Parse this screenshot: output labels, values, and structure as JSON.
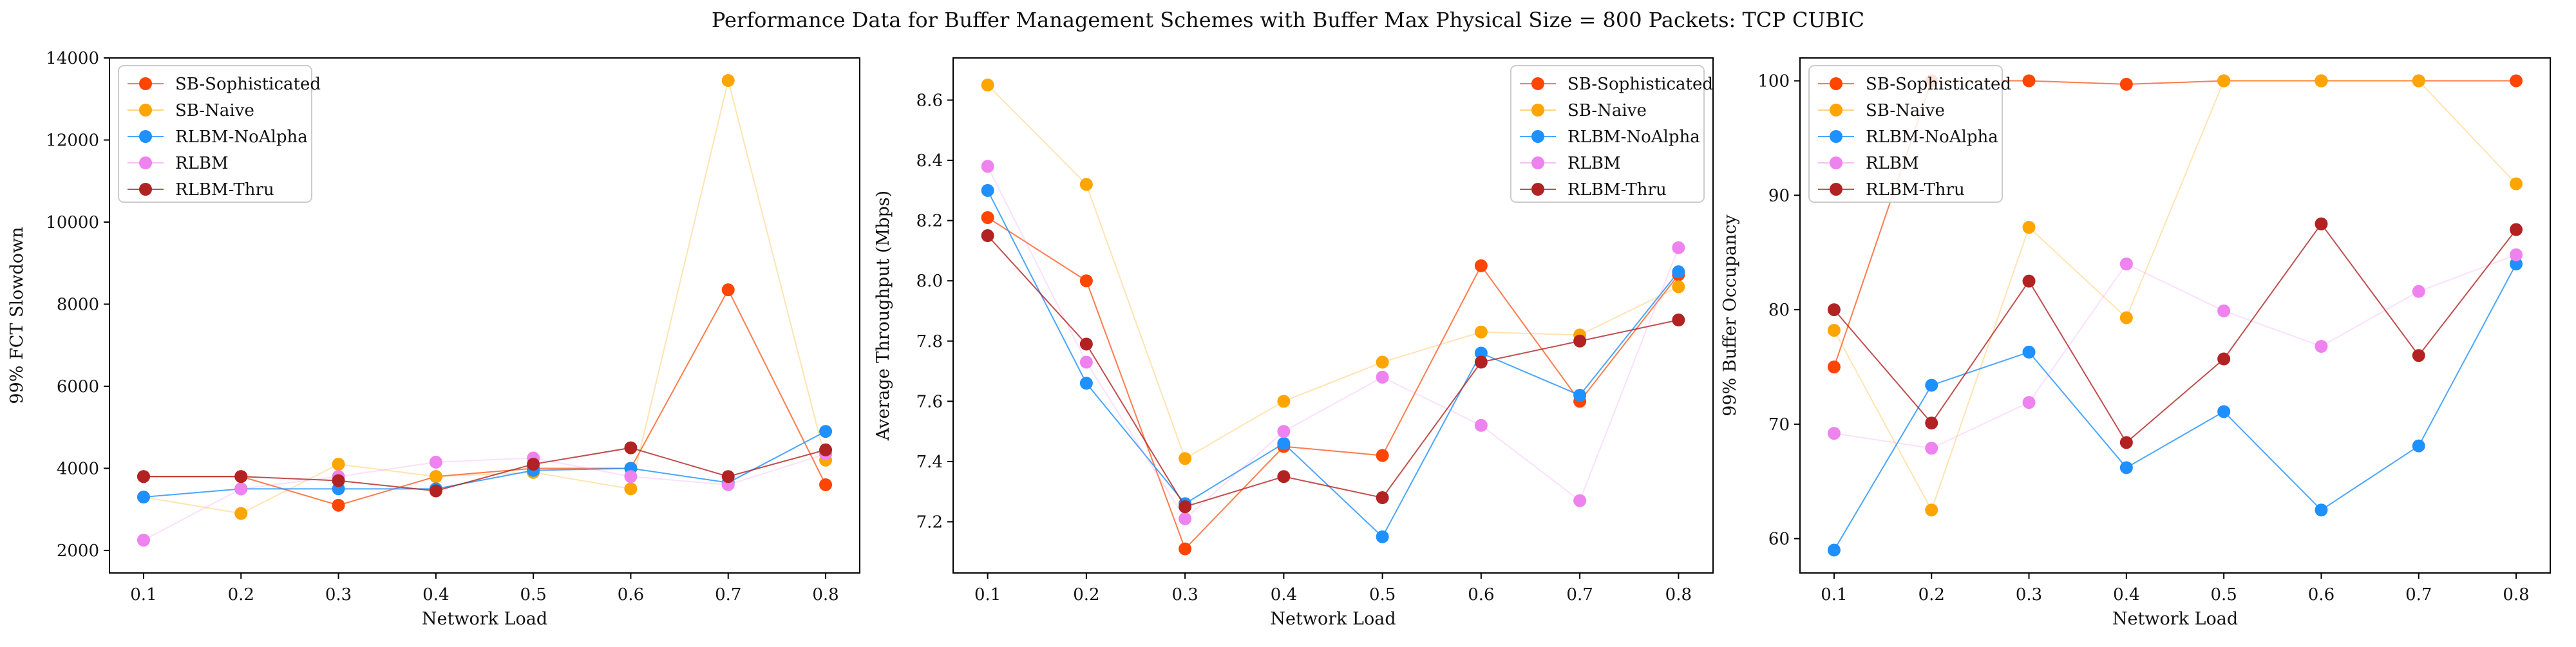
{
  "figure": {
    "title": "Performance Data for Buffer Management Schemes with Buffer Max Physical Size = 800 Packets: TCP CUBIC"
  },
  "series_styles": [
    {
      "name": "SB-Sophisticated",
      "color": "#ff4500",
      "line_opacity": 0.7
    },
    {
      "name": "SB-Naive",
      "color": "#ffa500",
      "line_opacity": 0.3
    },
    {
      "name": "RLBM-NoAlpha",
      "color": "#1e90ff",
      "line_opacity": 0.8
    },
    {
      "name": "RLBM",
      "color": "#ee82ee",
      "line_opacity": 0.25
    },
    {
      "name": "RLBM-Thru",
      "color": "#b22222",
      "line_opacity": 0.8
    }
  ],
  "chart_data": [
    {
      "type": "line",
      "title": "",
      "xlabel": "Network Load",
      "ylabel": "99% FCT Slowdown",
      "x": [
        0.1,
        0.2,
        0.3,
        0.4,
        0.5,
        0.6,
        0.7,
        0.8
      ],
      "xticks": [
        "0.1",
        "0.2",
        "0.3",
        "0.4",
        "0.5",
        "0.6",
        "0.7",
        "0.8"
      ],
      "xlim": [
        0.065,
        0.835
      ],
      "ylim": [
        1450,
        14000
      ],
      "yticks": [
        2000,
        4000,
        6000,
        8000,
        10000,
        12000,
        14000
      ],
      "ytick_labels": [
        "2000",
        "4000",
        "6000",
        "8000",
        "10000",
        "12000",
        "14000"
      ],
      "legend": "top-left",
      "grid": false,
      "series": [
        {
          "name": "SB-Sophisticated",
          "values": [
            3800,
            3800,
            3100,
            3800,
            4000,
            4000,
            8350,
            3600
          ]
        },
        {
          "name": "SB-Naive",
          "values": [
            3300,
            2900,
            4100,
            3800,
            3900,
            3500,
            13450,
            4200
          ]
        },
        {
          "name": "RLBM-NoAlpha",
          "values": [
            3300,
            3500,
            3500,
            3500,
            3950,
            4000,
            3650,
            4900
          ]
        },
        {
          "name": "RLBM",
          "values": [
            2250,
            3500,
            3800,
            4150,
            4250,
            3800,
            3600,
            4350
          ]
        },
        {
          "name": "RLBM-Thru",
          "values": [
            3800,
            3800,
            3700,
            3450,
            4100,
            4500,
            3800,
            4450
          ]
        }
      ]
    },
    {
      "type": "line",
      "title": "",
      "xlabel": "Network Load",
      "ylabel": "Average Throughput (Mbps)",
      "x": [
        0.1,
        0.2,
        0.3,
        0.4,
        0.5,
        0.6,
        0.7,
        0.8
      ],
      "xticks": [
        "0.1",
        "0.2",
        "0.3",
        "0.4",
        "0.5",
        "0.6",
        "0.7",
        "0.8"
      ],
      "xlim": [
        0.065,
        0.835
      ],
      "ylim": [
        7.03,
        8.74
      ],
      "yticks": [
        7.2,
        7.4,
        7.6,
        7.8,
        8.0,
        8.2,
        8.4,
        8.6
      ],
      "ytick_labels": [
        "7.2",
        "7.4",
        "7.6",
        "7.8",
        "8.0",
        "8.2",
        "8.4",
        "8.6"
      ],
      "legend": "top-right",
      "grid": false,
      "series": [
        {
          "name": "SB-Sophisticated",
          "values": [
            8.21,
            8.0,
            7.11,
            7.45,
            7.42,
            8.05,
            7.6,
            8.02
          ]
        },
        {
          "name": "SB-Naive",
          "values": [
            8.65,
            8.32,
            7.41,
            7.6,
            7.73,
            7.83,
            7.82,
            7.98
          ]
        },
        {
          "name": "RLBM-NoAlpha",
          "values": [
            8.3,
            7.66,
            7.26,
            7.46,
            7.15,
            7.76,
            7.62,
            8.03
          ]
        },
        {
          "name": "RLBM",
          "values": [
            8.38,
            7.73,
            7.21,
            7.5,
            7.68,
            7.52,
            7.27,
            8.11
          ]
        },
        {
          "name": "RLBM-Thru",
          "values": [
            8.15,
            7.79,
            7.25,
            7.35,
            7.28,
            7.73,
            7.8,
            7.87
          ]
        }
      ]
    },
    {
      "type": "line",
      "title": "",
      "xlabel": "Network Load",
      "ylabel": "99% Buffer Occupancy",
      "x": [
        0.1,
        0.2,
        0.3,
        0.4,
        0.5,
        0.6,
        0.7,
        0.8
      ],
      "xticks": [
        "0.1",
        "0.2",
        "0.3",
        "0.4",
        "0.5",
        "0.6",
        "0.7",
        "0.8"
      ],
      "xlim": [
        0.065,
        0.835
      ],
      "ylim": [
        57,
        102
      ],
      "yticks": [
        60,
        70,
        80,
        90,
        100
      ],
      "ytick_labels": [
        "60",
        "70",
        "80",
        "90",
        "100"
      ],
      "legend": "top-left",
      "grid": false,
      "series": [
        {
          "name": "SB-Sophisticated",
          "values": [
            75,
            100,
            100,
            99.7,
            100,
            100,
            100,
            100
          ]
        },
        {
          "name": "SB-Naive",
          "values": [
            78.2,
            62.5,
            87.2,
            79.3,
            100,
            100,
            100,
            91
          ]
        },
        {
          "name": "RLBM-NoAlpha",
          "values": [
            59,
            73.4,
            76.3,
            66.2,
            71.1,
            62.5,
            68.1,
            84
          ]
        },
        {
          "name": "RLBM",
          "values": [
            69.2,
            67.9,
            71.9,
            84,
            79.9,
            76.8,
            81.6,
            84.8
          ]
        },
        {
          "name": "RLBM-Thru",
          "values": [
            80,
            70.1,
            82.5,
            68.4,
            75.7,
            87.5,
            76,
            87
          ]
        }
      ]
    }
  ]
}
